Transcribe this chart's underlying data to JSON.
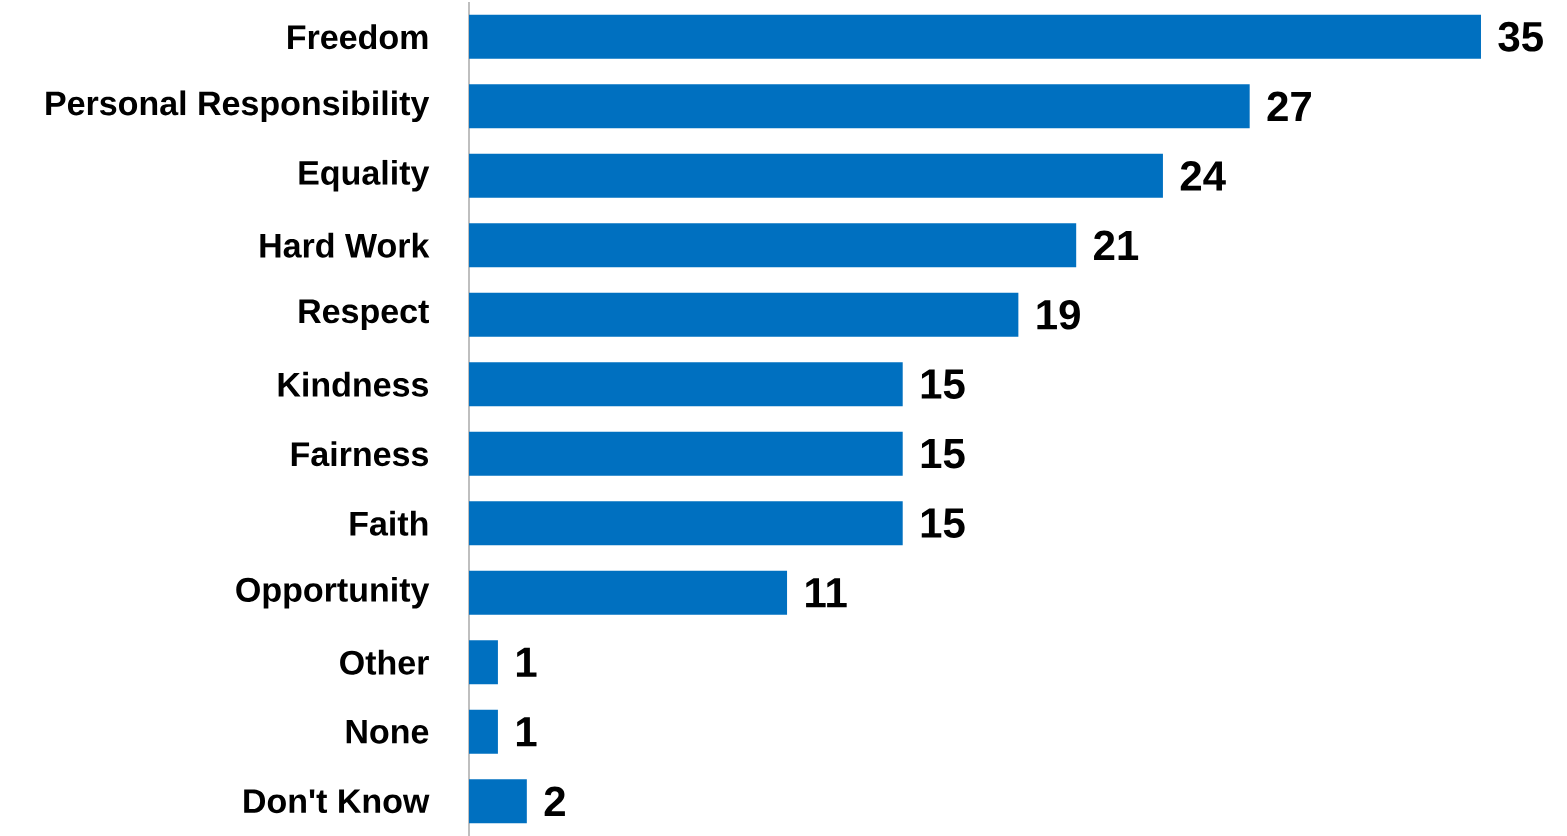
{
  "chart_data": {
    "type": "bar",
    "orientation": "horizontal",
    "categories": [
      "Freedom",
      "Personal Responsibility",
      "Equality",
      "Hard Work",
      "Respect",
      "Kindness",
      "Fairness",
      "Faith",
      "Opportunity",
      "Other",
      "None",
      "Don't Know"
    ],
    "values": [
      35,
      27,
      24,
      21,
      19,
      15,
      15,
      15,
      11,
      1,
      1,
      2
    ],
    "color": "#0070c0",
    "data_labels": true
  }
}
